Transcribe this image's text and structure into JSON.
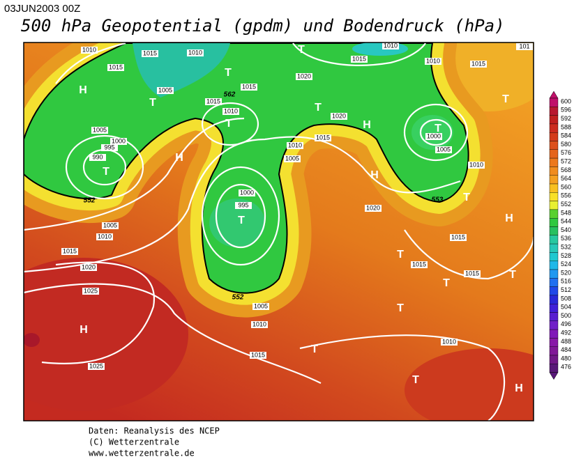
{
  "header": {
    "date": "03JUN2003 00Z",
    "title": "500 hPa Geopotential (gpdm) und Bodendruck (hPa)"
  },
  "map": {
    "isobar_labels": [
      "1010",
      "1015",
      "1010",
      "1015",
      "1005",
      "562",
      "1015",
      "1015",
      "1010",
      "1020",
      "1010",
      "1015",
      "1010",
      "1015",
      "101",
      "1020",
      "1015",
      "1010",
      "1005",
      "1005",
      "1000",
      "995",
      "990",
      "1000",
      "1005",
      "1010",
      "552",
      "1000",
      "995",
      "1005",
      "1010",
      "1020",
      "553",
      "1015",
      "1015",
      "1015",
      "1015",
      "1020",
      "1025",
      "552",
      "1005",
      "1010",
      "1015",
      "1010",
      "1025"
    ],
    "pressure_centers": [
      "H",
      "T",
      "T",
      "T",
      "H",
      "T",
      "T",
      "T",
      "H",
      "T",
      "T",
      "H",
      "T",
      "T",
      "H",
      "T",
      "T",
      "T",
      "T",
      "H",
      "T",
      "T",
      "H"
    ]
  },
  "colorbar": {
    "ticks": [
      600,
      596,
      592,
      588,
      584,
      580,
      576,
      572,
      568,
      564,
      560,
      556,
      552,
      548,
      544,
      540,
      536,
      532,
      528,
      524,
      520,
      516,
      512,
      508,
      504,
      500,
      496,
      492,
      488,
      484,
      480,
      476
    ]
  },
  "footer": {
    "lines": [
      "Daten: Reanalysis des NCEP",
      "(C) Wetterzentrale",
      "www.wetterzentrale.de"
    ]
  }
}
